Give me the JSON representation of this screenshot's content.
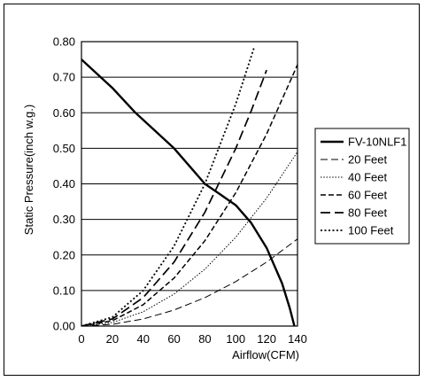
{
  "chart_data": {
    "type": "line",
    "xlabel": "Airflow(CFM)",
    "ylabel": "Static Pressure(inch w.g.)",
    "xlim": [
      0,
      140
    ],
    "ylim": [
      0,
      0.8
    ],
    "x_ticks": [
      "0",
      "20",
      "40",
      "60",
      "80",
      "100",
      "120",
      "140"
    ],
    "y_ticks": [
      "0.00",
      "0.10",
      "0.20",
      "0.30",
      "0.40",
      "0.50",
      "0.60",
      "0.70",
      "0.80"
    ],
    "x_tick_values": [
      0,
      20,
      40,
      60,
      80,
      100,
      120,
      140
    ],
    "y_tick_values": [
      0,
      0.1,
      0.2,
      0.3,
      0.4,
      0.5,
      0.6,
      0.7,
      0.8
    ],
    "grid": "horizontal",
    "legend_position": "right",
    "series": [
      {
        "name": "FV-10NLF1",
        "style": "solid-bold",
        "x": [
          0,
          20,
          35,
          50,
          60,
          70,
          80,
          90,
          100,
          110,
          120,
          130,
          135,
          138
        ],
        "y": [
          0.75,
          0.67,
          0.6,
          0.54,
          0.5,
          0.45,
          0.4,
          0.37,
          0.34,
          0.29,
          0.22,
          0.12,
          0.05,
          0.0
        ]
      },
      {
        "name": "20 Feet",
        "style": "dash-long-thin",
        "x": [
          0,
          20,
          40,
          60,
          80,
          100,
          120,
          140
        ],
        "y": [
          0,
          0.005,
          0.02,
          0.045,
          0.08,
          0.125,
          0.18,
          0.245
        ]
      },
      {
        "name": "40 Feet",
        "style": "dot-thin",
        "x": [
          0,
          20,
          40,
          60,
          80,
          100,
          120,
          140
        ],
        "y": [
          0,
          0.01,
          0.04,
          0.09,
          0.16,
          0.25,
          0.36,
          0.49
        ]
      },
      {
        "name": "60 Feet",
        "style": "dash-medium",
        "x": [
          0,
          20,
          40,
          60,
          80,
          100,
          120,
          140
        ],
        "y": [
          0,
          0.015,
          0.06,
          0.135,
          0.24,
          0.375,
          0.54,
          0.735
        ]
      },
      {
        "name": "80 Feet",
        "style": "dash-long",
        "x": [
          0,
          20,
          40,
          60,
          80,
          100,
          110,
          120
        ],
        "y": [
          0,
          0.02,
          0.08,
          0.18,
          0.32,
          0.5,
          0.605,
          0.72
        ]
      },
      {
        "name": "100 Feet",
        "style": "dot",
        "x": [
          0,
          20,
          40,
          60,
          80,
          100,
          112
        ],
        "y": [
          0,
          0.025,
          0.1,
          0.225,
          0.4,
          0.625,
          0.785
        ]
      }
    ]
  }
}
